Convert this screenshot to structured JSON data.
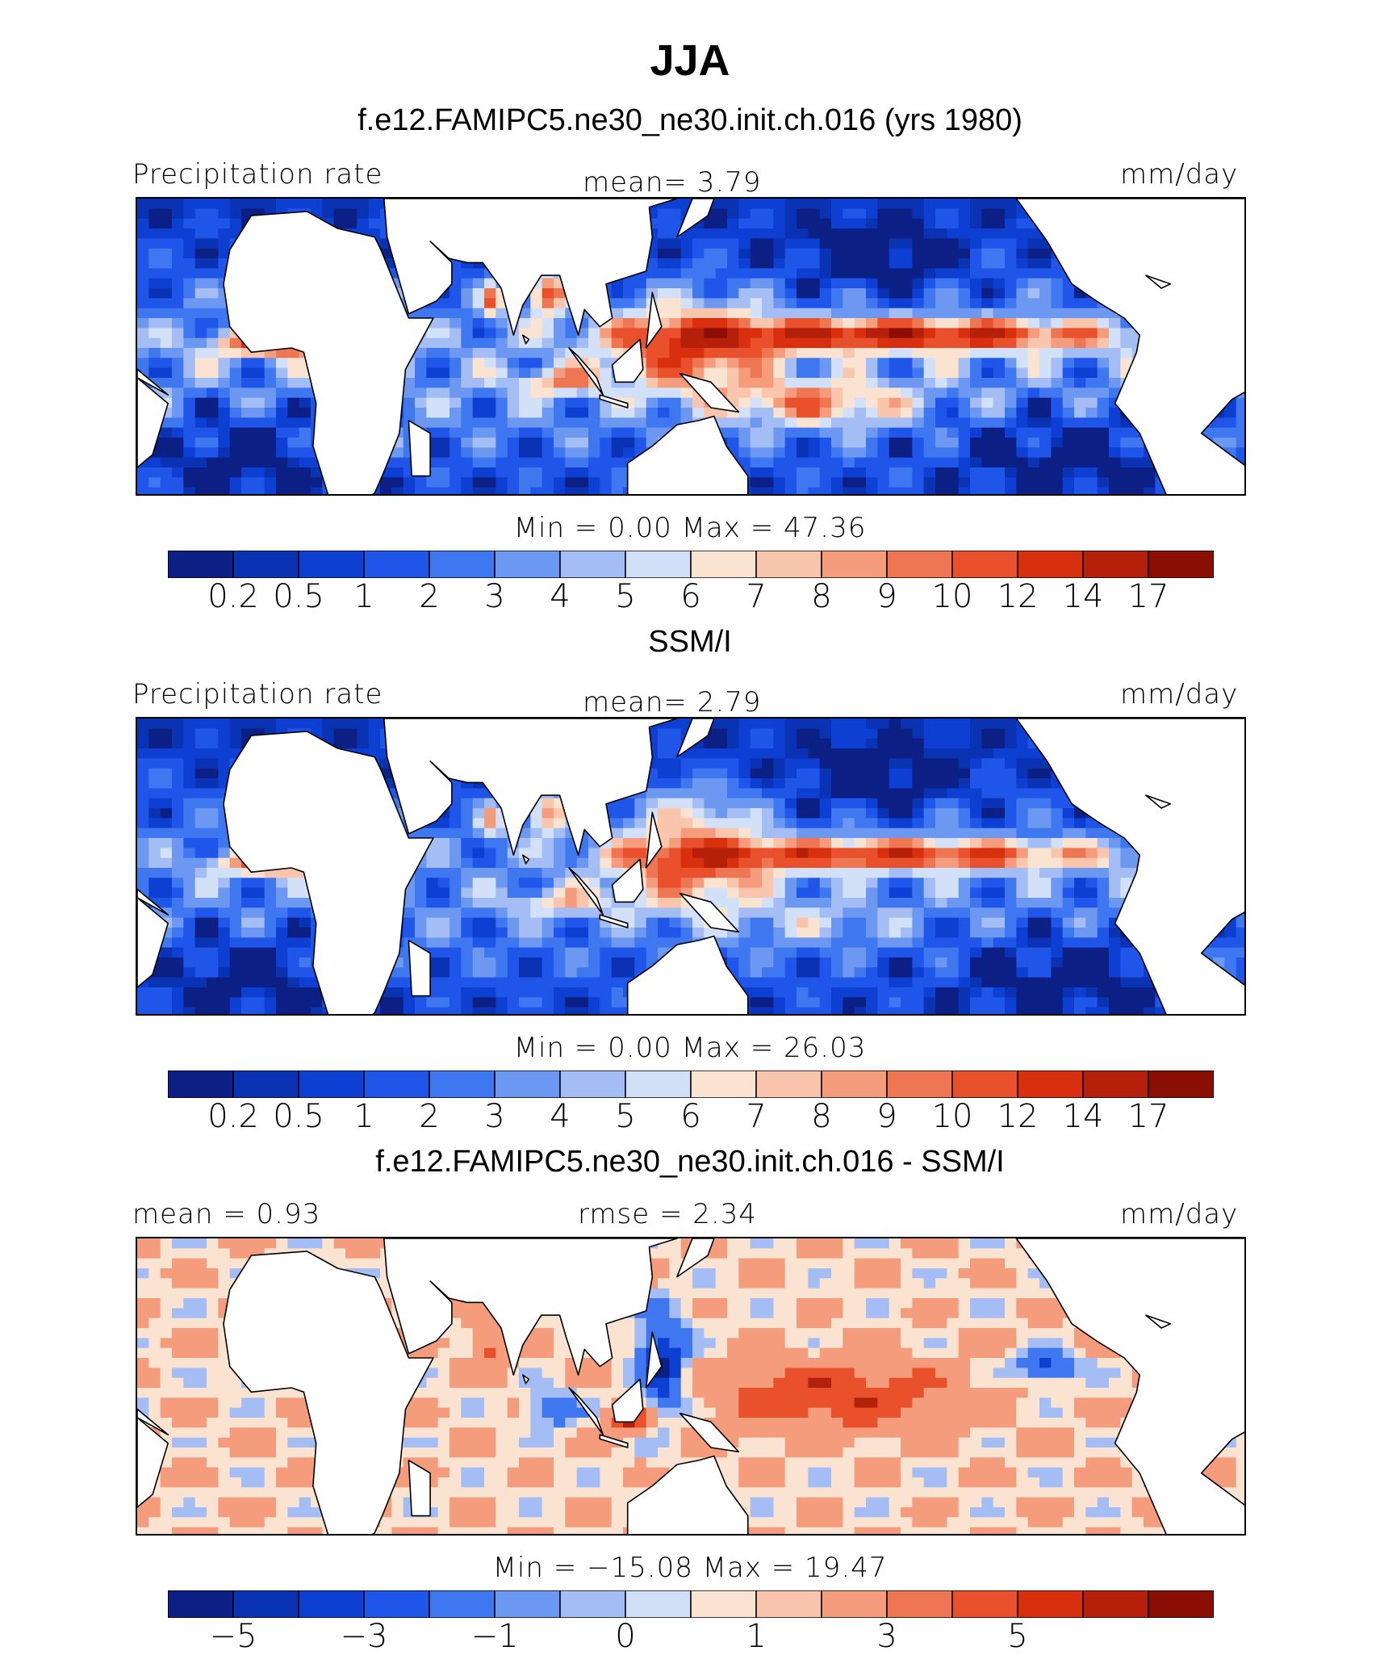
{
  "header": {
    "title": "JJA",
    "subtitle": "f.e12.FAMIPC5.ne30_ne30.init.ch.016 (yrs 1980)"
  },
  "panels": [
    {
      "left_label": "Precipitation rate",
      "center_label": "mean=   3.79",
      "right_label": "mm/day",
      "minmax": "Min  =    0.00  Max  =   47.36",
      "heading": "",
      "colorbar": [
        "#0b1f85",
        "#0a33b4",
        "#0d3fd3",
        "#1f55e8",
        "#3f77f0",
        "#6c98f2",
        "#a4bdf4",
        "#d2e1f8",
        "#fbe3d2",
        "#f9c6ad",
        "#f49c7b",
        "#ef7652",
        "#e8512c",
        "#d8300f",
        "#b4200a",
        "#8b0e04"
      ],
      "ticks": [
        "0.2",
        "0.5",
        "1",
        "2",
        "3",
        "4",
        "5",
        "6",
        "7",
        "8",
        "9",
        "10",
        "12",
        "14",
        "17"
      ]
    },
    {
      "left_label": "Precipitation rate",
      "center_label": "mean=   2.79",
      "right_label": "mm/day",
      "minmax": "Min  =    0.00  Max  =   26.03",
      "heading": "SSM/I",
      "colorbar": [
        "#0b1f85",
        "#0a33b4",
        "#0d3fd3",
        "#1f55e8",
        "#3f77f0",
        "#6c98f2",
        "#a4bdf4",
        "#d2e1f8",
        "#fbe3d2",
        "#f9c6ad",
        "#f49c7b",
        "#ef7652",
        "#e8512c",
        "#d8300f",
        "#b4200a",
        "#8b0e04"
      ],
      "ticks": [
        "0.2",
        "0.5",
        "1",
        "2",
        "3",
        "4",
        "5",
        "6",
        "7",
        "8",
        "9",
        "10",
        "12",
        "14",
        "17"
      ]
    },
    {
      "left_label": "mean  =    0.93",
      "center_label": "rmse  =    2.34",
      "right_label": "mm/day",
      "minmax": "Min  = −15.08  Max  =   19.47",
      "heading": "f.e12.FAMIPC5.ne30_ne30.init.ch.016 - SSM/I",
      "colorbar": [
        "#0b1f85",
        "#0a33b4",
        "#0d3fd3",
        "#1f55e8",
        "#3f77f0",
        "#6c98f2",
        "#a4bdf4",
        "#d2e1f8",
        "#fbe3d2",
        "#f9c6ad",
        "#f49c7b",
        "#ef7652",
        "#e8512c",
        "#d8300f",
        "#b4200a",
        "#8b0e04"
      ],
      "ticks": [
        "−5",
        "−3",
        "−1",
        "0",
        "1",
        "3",
        "5"
      ]
    }
  ],
  "chart_data": [
    {
      "type": "heatmap",
      "title": "Precipitation rate",
      "model": "f.e12.FAMIPC5.ne30_ne30.init.ch.016 (yrs 1980)",
      "units": "mm/day",
      "mean": 3.79,
      "min": 0.0,
      "max": 47.36,
      "levels": [
        0.2,
        0.5,
        1,
        2,
        3,
        4,
        5,
        6,
        7,
        8,
        9,
        10,
        12,
        14,
        17
      ]
    },
    {
      "type": "heatmap",
      "title": "SSM/I",
      "units": "mm/day",
      "mean": 2.79,
      "min": 0.0,
      "max": 26.03,
      "levels": [
        0.2,
        0.5,
        1,
        2,
        3,
        4,
        5,
        6,
        7,
        8,
        9,
        10,
        12,
        14,
        17
      ]
    },
    {
      "type": "heatmap",
      "title": "f.e12.FAMIPC5.ne30_ne30.init.ch.016 - SSM/I",
      "units": "mm/day",
      "mean": 0.93,
      "rmse": 2.34,
      "min": -15.08,
      "max": 19.47,
      "levels": [
        -5,
        -3,
        -1,
        0,
        1,
        3,
        5
      ]
    }
  ]
}
